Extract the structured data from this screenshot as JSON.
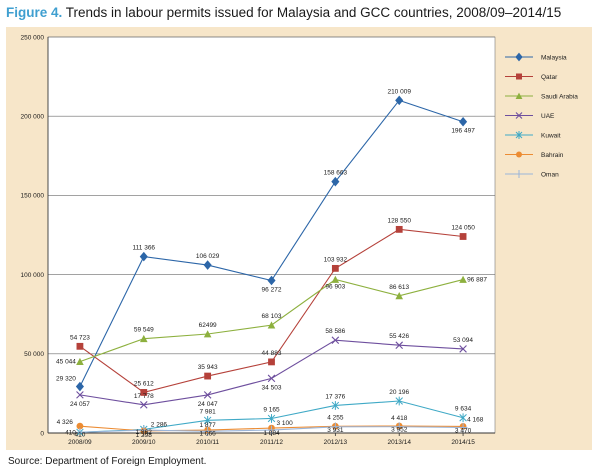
{
  "figure": {
    "label": "Figure 4.",
    "title": "Trends in labour permits issued for Malaysia and GCC countries, 2008/09–2014/15",
    "source": "Source: Department of Foreign Employment."
  },
  "chart_data": {
    "type": "line",
    "title": "Trends in labour permits issued for Malaysia and GCC countries, 2008/09–2014/15",
    "xlabel": "",
    "ylabel": "",
    "categories": [
      "2008/09",
      "2009/10",
      "2010/11",
      "2011/12",
      "2012/13",
      "2013/14",
      "2014/15"
    ],
    "ylim": [
      0,
      250000
    ],
    "yticks": [
      0,
      50000,
      100000,
      150000,
      200000,
      250000
    ],
    "ytick_labels": [
      "0",
      "50 000",
      "100 000",
      "150 000",
      "200 000",
      "250 000"
    ],
    "grid": "horizontal",
    "legend_position": "top-right",
    "series": [
      {
        "name": "Malaysia",
        "color": "#2c66a8",
        "marker": "diamond",
        "values": [
          29320,
          111366,
          106029,
          96272,
          158663,
          210009,
          196497
        ],
        "labels": [
          "29 320",
          "111 366",
          "106 029",
          "96 272",
          "158 663",
          "210 009",
          "196 497"
        ]
      },
      {
        "name": "Qatar",
        "color": "#b5413a",
        "marker": "square",
        "values": [
          54723,
          25612,
          35943,
          44883,
          103932,
          128550,
          124050
        ],
        "labels": [
          "54 723",
          "25 612",
          "35 943",
          "44 883",
          "103 932",
          "128 550",
          "124 050"
        ]
      },
      {
        "name": "Saudi Arabia",
        "color": "#8db03e",
        "marker": "triangle",
        "values": [
          45044,
          59549,
          62499,
          68103,
          96903,
          86613,
          96887
        ],
        "labels": [
          "45 044",
          "59 549",
          "62499",
          "68 103",
          "96 903",
          "86 613",
          "96 887"
        ]
      },
      {
        "name": "UAE",
        "color": "#6e4f9e",
        "marker": "x",
        "values": [
          24057,
          17778,
          24047,
          34503,
          58586,
          55426,
          53094
        ],
        "labels": [
          "24 057",
          "17 778",
          "24 047",
          "34 503",
          "58 586",
          "55 426",
          "53 094"
        ]
      },
      {
        "name": "Kuwait",
        "color": "#3fa9c6",
        "marker": "star",
        "values": [
          410,
          2286,
          7981,
          9165,
          17376,
          20196,
          9634
        ],
        "labels": [
          "410",
          "2 286",
          "7 981",
          "9 165",
          "17 376",
          "20 196",
          "9 634"
        ]
      },
      {
        "name": "Bahrain",
        "color": "#ec8c33",
        "marker": "circle",
        "values": [
          4326,
          1298,
          1877,
          3100,
          4255,
          4418,
          4168
        ],
        "labels": [
          "4 326",
          "1 298",
          "1 877",
          "3 100",
          "4 255",
          "4 418",
          "4 168"
        ]
      },
      {
        "name": "Oman",
        "color": "#9bb5d9",
        "marker": "plus",
        "values": [
          410,
          1862,
          1066,
          1884,
          3931,
          3952,
          3470
        ],
        "labels": [
          "410",
          "1 862",
          "1 066",
          "1 884",
          "3 931",
          "3 952",
          "3 470"
        ]
      }
    ]
  }
}
